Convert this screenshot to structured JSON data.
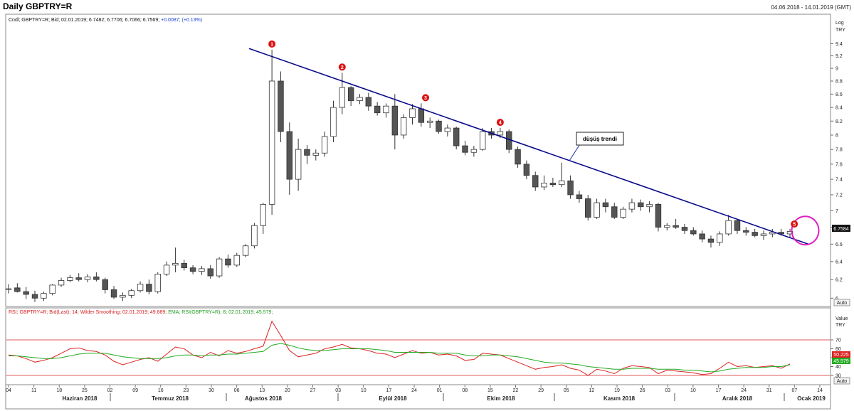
{
  "header": {
    "title": "Daily GBPTRY=R",
    "date_range": "04.06.2018 - 14.01.2019 (GMT)"
  },
  "colors": {
    "trend_line": "#0a0a8c",
    "marker": "#dd1111",
    "circle": "#e020c0",
    "rsi_line": "#dd2222",
    "ema_line": "#22aa22",
    "level_line": "#dd2222",
    "bull_candle": "#ffffff",
    "bear_candle": "#555555"
  },
  "chart_data": [
    {
      "type": "candlestick",
      "title": "Daily GBPTRY=R",
      "legend_text": "Cndl; GBPTRY=R; Bid; 02.01.2019; 6.7482; 6.7706; 6.7066; 6.7569;",
      "legend_change": "+0.0087; (+0.13%)",
      "y_unit_top": "Log",
      "y_unit_bottom": "TRY",
      "y_scale": "log",
      "ylim": [
        5.92,
        9.68
      ],
      "y_ticks": [
        "9.4",
        "9.2",
        "9",
        "8.8",
        "8.6",
        "8.4",
        "8.2",
        "8",
        "7.8",
        "7.6",
        "7.4",
        "7.2",
        "7",
        "6.8",
        "6.6",
        "6.4",
        "6.2",
        "6"
      ],
      "last_price_label": "6.7584",
      "auto_label": "Auto",
      "annotation": "düşüş trendi",
      "trendline": [
        [
          0.0,
          9.32
        ],
        [
          101.0,
          6.6
        ]
      ],
      "highlight_circle_index": 90.5,
      "numbered_markers": [
        {
          "label": "1",
          "index": 30,
          "y": 9.3
        },
        {
          "label": "2",
          "index": 38,
          "y": 8.93
        },
        {
          "label": "3",
          "index": 47.5,
          "y": 8.46
        },
        {
          "label": "4",
          "index": 56,
          "y": 8.1
        },
        {
          "label": "5",
          "index": 89.5,
          "y": 6.77
        }
      ],
      "candles": [
        {
          "o": 6.1,
          "h": 6.15,
          "l": 6.05,
          "c": 6.1
        },
        {
          "o": 6.11,
          "h": 6.16,
          "l": 6.06,
          "c": 6.07
        },
        {
          "o": 6.07,
          "h": 6.12,
          "l": 5.99,
          "c": 6.04
        },
        {
          "o": 6.04,
          "h": 6.08,
          "l": 5.96,
          "c": 6.0
        },
        {
          "o": 6.0,
          "h": 6.07,
          "l": 5.97,
          "c": 6.05
        },
        {
          "o": 6.05,
          "h": 6.15,
          "l": 6.03,
          "c": 6.14
        },
        {
          "o": 6.14,
          "h": 6.22,
          "l": 6.12,
          "c": 6.19
        },
        {
          "o": 6.19,
          "h": 6.25,
          "l": 6.17,
          "c": 6.22
        },
        {
          "o": 6.22,
          "h": 6.27,
          "l": 6.18,
          "c": 6.2
        },
        {
          "o": 6.2,
          "h": 6.26,
          "l": 6.17,
          "c": 6.23
        },
        {
          "o": 6.23,
          "h": 6.28,
          "l": 6.18,
          "c": 6.2
        },
        {
          "o": 6.2,
          "h": 6.22,
          "l": 6.05,
          "c": 6.09
        },
        {
          "o": 6.09,
          "h": 6.13,
          "l": 5.99,
          "c": 6.01
        },
        {
          "o": 6.01,
          "h": 6.06,
          "l": 5.97,
          "c": 6.03
        },
        {
          "o": 6.03,
          "h": 6.1,
          "l": 6.0,
          "c": 6.08
        },
        {
          "o": 6.08,
          "h": 6.18,
          "l": 6.06,
          "c": 6.15
        },
        {
          "o": 6.15,
          "h": 6.2,
          "l": 6.04,
          "c": 6.07
        },
        {
          "o": 6.07,
          "h": 6.28,
          "l": 6.05,
          "c": 6.26
        },
        {
          "o": 6.26,
          "h": 6.4,
          "l": 6.24,
          "c": 6.36
        },
        {
          "o": 6.36,
          "h": 6.56,
          "l": 6.28,
          "c": 6.38
        },
        {
          "o": 6.38,
          "h": 6.42,
          "l": 6.3,
          "c": 6.33
        },
        {
          "o": 6.33,
          "h": 6.36,
          "l": 6.26,
          "c": 6.29
        },
        {
          "o": 6.29,
          "h": 6.35,
          "l": 6.25,
          "c": 6.32
        },
        {
          "o": 6.32,
          "h": 6.36,
          "l": 6.21,
          "c": 6.24
        },
        {
          "o": 6.24,
          "h": 6.45,
          "l": 6.22,
          "c": 6.43
        },
        {
          "o": 6.43,
          "h": 6.48,
          "l": 6.33,
          "c": 6.36
        },
        {
          "o": 6.36,
          "h": 6.5,
          "l": 6.34,
          "c": 6.47
        },
        {
          "o": 6.47,
          "h": 6.6,
          "l": 6.45,
          "c": 6.58
        },
        {
          "o": 6.58,
          "h": 6.85,
          "l": 6.55,
          "c": 6.82
        },
        {
          "o": 6.82,
          "h": 7.1,
          "l": 6.72,
          "c": 7.08
        },
        {
          "o": 7.08,
          "h": 9.3,
          "l": 6.95,
          "c": 8.8
        },
        {
          "o": 8.8,
          "h": 8.95,
          "l": 7.9,
          "c": 8.05
        },
        {
          "o": 8.05,
          "h": 8.18,
          "l": 7.2,
          "c": 7.4
        },
        {
          "o": 7.4,
          "h": 7.95,
          "l": 7.25,
          "c": 7.8
        },
        {
          "o": 7.8,
          "h": 7.86,
          "l": 7.6,
          "c": 7.72
        },
        {
          "o": 7.72,
          "h": 7.8,
          "l": 7.65,
          "c": 7.75
        },
        {
          "o": 7.75,
          "h": 8.05,
          "l": 7.7,
          "c": 7.98
        },
        {
          "o": 7.98,
          "h": 8.5,
          "l": 7.9,
          "c": 8.4
        },
        {
          "o": 8.4,
          "h": 8.93,
          "l": 8.3,
          "c": 8.7
        },
        {
          "o": 8.7,
          "h": 8.72,
          "l": 8.42,
          "c": 8.5
        },
        {
          "o": 8.5,
          "h": 8.6,
          "l": 8.45,
          "c": 8.55
        },
        {
          "o": 8.55,
          "h": 8.62,
          "l": 8.35,
          "c": 8.42
        },
        {
          "o": 8.42,
          "h": 8.48,
          "l": 8.28,
          "c": 8.32
        },
        {
          "o": 8.32,
          "h": 8.46,
          "l": 8.25,
          "c": 8.42
        },
        {
          "o": 8.42,
          "h": 8.6,
          "l": 7.8,
          "c": 8.0
        },
        {
          "o": 8.0,
          "h": 8.3,
          "l": 7.95,
          "c": 8.25
        },
        {
          "o": 8.25,
          "h": 8.45,
          "l": 8.15,
          "c": 8.38
        },
        {
          "o": 8.38,
          "h": 8.46,
          "l": 8.12,
          "c": 8.18
        },
        {
          "o": 8.18,
          "h": 8.25,
          "l": 8.1,
          "c": 8.2
        },
        {
          "o": 8.2,
          "h": 8.22,
          "l": 8.02,
          "c": 8.05
        },
        {
          "o": 8.05,
          "h": 8.15,
          "l": 7.98,
          "c": 8.1
        },
        {
          "o": 8.1,
          "h": 8.12,
          "l": 7.8,
          "c": 7.85
        },
        {
          "o": 7.85,
          "h": 7.92,
          "l": 7.72,
          "c": 7.76
        },
        {
          "o": 7.76,
          "h": 7.85,
          "l": 7.7,
          "c": 7.8
        },
        {
          "o": 7.8,
          "h": 8.1,
          "l": 7.78,
          "c": 8.05
        },
        {
          "o": 8.05,
          "h": 8.1,
          "l": 7.95,
          "c": 8.0
        },
        {
          "o": 8.0,
          "h": 8.1,
          "l": 7.96,
          "c": 8.05
        },
        {
          "o": 8.05,
          "h": 8.08,
          "l": 7.75,
          "c": 7.8
        },
        {
          "o": 7.8,
          "h": 7.84,
          "l": 7.55,
          "c": 7.6
        },
        {
          "o": 7.6,
          "h": 7.65,
          "l": 7.4,
          "c": 7.45
        },
        {
          "o": 7.45,
          "h": 7.5,
          "l": 7.25,
          "c": 7.3
        },
        {
          "o": 7.3,
          "h": 7.45,
          "l": 7.26,
          "c": 7.35
        },
        {
          "o": 7.35,
          "h": 7.42,
          "l": 7.3,
          "c": 7.33
        },
        {
          "o": 7.33,
          "h": 7.62,
          "l": 7.3,
          "c": 7.38
        },
        {
          "o": 7.38,
          "h": 7.45,
          "l": 7.15,
          "c": 7.2
        },
        {
          "o": 7.2,
          "h": 7.25,
          "l": 7.1,
          "c": 7.15
        },
        {
          "o": 7.15,
          "h": 7.2,
          "l": 6.88,
          "c": 6.92
        },
        {
          "o": 6.92,
          "h": 7.15,
          "l": 6.9,
          "c": 7.1
        },
        {
          "o": 7.1,
          "h": 7.15,
          "l": 6.98,
          "c": 7.05
        },
        {
          "o": 7.05,
          "h": 7.1,
          "l": 6.9,
          "c": 6.92
        },
        {
          "o": 6.92,
          "h": 7.05,
          "l": 6.9,
          "c": 7.02
        },
        {
          "o": 7.02,
          "h": 7.15,
          "l": 6.98,
          "c": 7.1
        },
        {
          "o": 7.1,
          "h": 7.14,
          "l": 7.0,
          "c": 7.05
        },
        {
          "o": 7.05,
          "h": 7.12,
          "l": 6.98,
          "c": 7.08
        },
        {
          "o": 7.08,
          "h": 7.1,
          "l": 6.75,
          "c": 6.8
        },
        {
          "o": 6.8,
          "h": 6.85,
          "l": 6.76,
          "c": 6.82
        },
        {
          "o": 6.82,
          "h": 6.9,
          "l": 6.78,
          "c": 6.8
        },
        {
          "o": 6.8,
          "h": 6.84,
          "l": 6.72,
          "c": 6.76
        },
        {
          "o": 6.76,
          "h": 6.8,
          "l": 6.7,
          "c": 6.72
        },
        {
          "o": 6.72,
          "h": 6.76,
          "l": 6.62,
          "c": 6.66
        },
        {
          "o": 6.66,
          "h": 6.7,
          "l": 6.56,
          "c": 6.62
        },
        {
          "o": 6.62,
          "h": 6.75,
          "l": 6.58,
          "c": 6.72
        },
        {
          "o": 6.72,
          "h": 6.95,
          "l": 6.7,
          "c": 6.88
        },
        {
          "o": 6.88,
          "h": 6.9,
          "l": 6.72,
          "c": 6.76
        },
        {
          "o": 6.76,
          "h": 6.8,
          "l": 6.7,
          "c": 6.74
        },
        {
          "o": 6.74,
          "h": 6.78,
          "l": 6.68,
          "c": 6.7
        },
        {
          "o": 6.7,
          "h": 6.76,
          "l": 6.65,
          "c": 6.72
        },
        {
          "o": 6.72,
          "h": 6.78,
          "l": 6.68,
          "c": 6.74
        },
        {
          "o": 6.74,
          "h": 6.78,
          "l": 6.7,
          "c": 6.72
        },
        {
          "o": 6.72,
          "h": 6.78,
          "l": 6.68,
          "c": 6.75
        }
      ]
    },
    {
      "type": "line",
      "legend_red": "RSI; GBPTRY=R; Bid(Last); 14; Wilder Smoothing; 02.01.2019; 49.889;",
      "legend_green": "EMA; RSI(GBPTRY=R); 8; 02.01.2019; 45.579;",
      "y_unit_top": "Value",
      "y_unit_bottom": "TRY",
      "ylim": [
        22,
        94
      ],
      "y_ticks": [
        "70",
        "60",
        "50",
        "40",
        "30"
      ],
      "levels": [
        70,
        30
      ],
      "last_labels": [
        "50.225",
        "45.579"
      ],
      "auto_label": "Auto",
      "series": [
        {
          "name": "RSI",
          "values": [
            53,
            52,
            49,
            45,
            47,
            50,
            55,
            60,
            61,
            58,
            57,
            53,
            46,
            42,
            45,
            48,
            50,
            46,
            54,
            62,
            60,
            53,
            50,
            56,
            52,
            58,
            55,
            57,
            60,
            63,
            91,
            75,
            58,
            51,
            53,
            55,
            60,
            62,
            65,
            61,
            60,
            58,
            55,
            54,
            50,
            54,
            58,
            55,
            56,
            53,
            54,
            52,
            47,
            48,
            55,
            54,
            53,
            49,
            45,
            41,
            37,
            39,
            40,
            42,
            38,
            36,
            30,
            37,
            35,
            32,
            38,
            41,
            40,
            39,
            32,
            36,
            35,
            34,
            33,
            31,
            32,
            38,
            45,
            40,
            41,
            39,
            40,
            41,
            38,
            43
          ]
        },
        {
          "name": "EMA",
          "values": [
            52,
            52,
            51,
            50,
            49,
            49,
            50,
            52,
            54,
            55,
            55,
            55,
            53,
            51,
            50,
            49,
            49,
            49,
            50,
            52,
            53,
            53,
            52,
            53,
            53,
            54,
            54,
            55,
            56,
            57,
            64,
            66,
            64,
            61,
            59,
            58,
            58,
            59,
            60,
            60,
            60,
            60,
            59,
            58,
            56,
            56,
            56,
            56,
            56,
            55,
            55,
            55,
            53,
            52,
            52,
            53,
            53,
            52,
            51,
            49,
            47,
            45,
            44,
            44,
            43,
            42,
            40,
            39,
            38,
            37,
            37,
            38,
            38,
            38,
            37,
            37,
            37,
            36,
            36,
            35,
            34,
            35,
            37,
            38,
            39,
            39,
            39,
            40,
            40,
            42
          ]
        }
      ]
    }
  ],
  "x_axis": {
    "day_ticks": [
      "04",
      "11",
      "18",
      "25",
      "02",
      "09",
      "16",
      "23",
      "30",
      "06",
      "13",
      "20",
      "27",
      "03",
      "10",
      "17",
      "24",
      "01",
      "08",
      "15",
      "22",
      "29",
      "05",
      "12",
      "19",
      "26",
      "03",
      "10",
      "17",
      "24",
      "31",
      "07",
      "14"
    ],
    "months": [
      "Haziran 2018",
      "Temmuz 2018",
      "Ağustos 2018",
      "Eylül 2018",
      "Ekim 2018",
      "Kasım 2018",
      "Aralık 2018",
      "Ocak 2019"
    ]
  }
}
